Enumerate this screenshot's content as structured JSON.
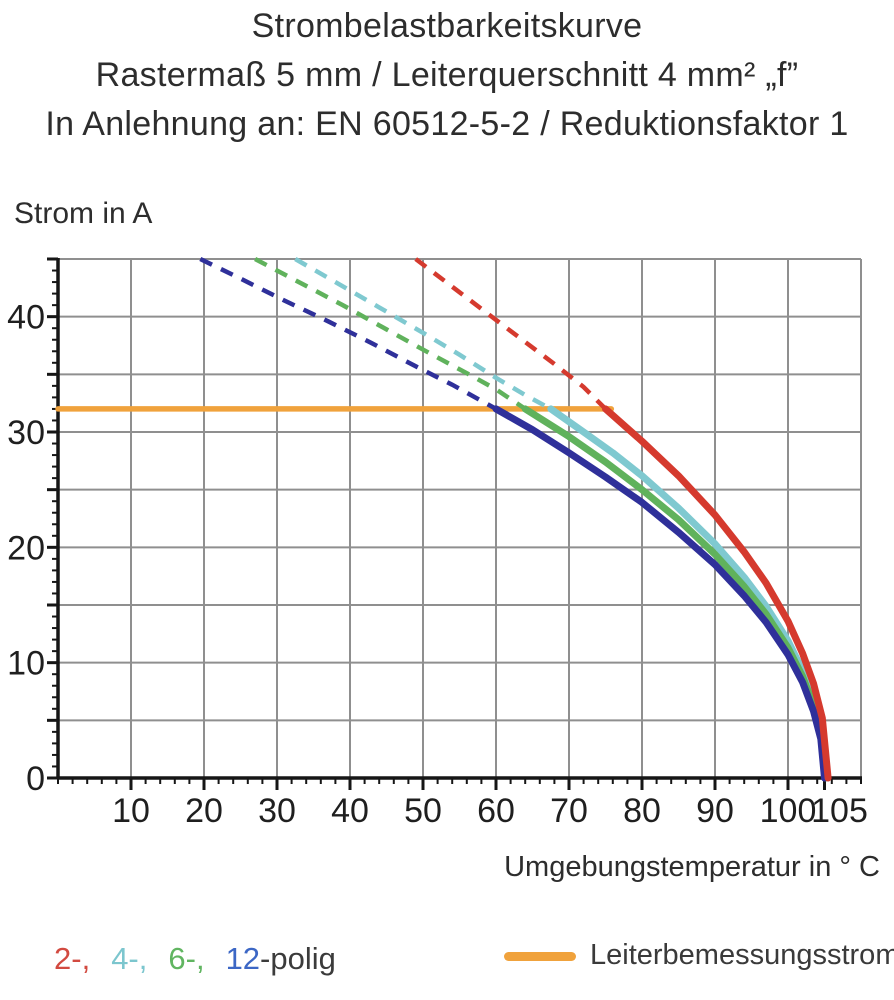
{
  "title": {
    "lines": [
      "Strombelastbarkeitskurve",
      "Rastermaß 5 mm / Leiterquerschnitt 4 mm² „f”",
      "In Anlehnung an: EN 60512-5-2 / Reduktionsfaktor 1"
    ]
  },
  "chart_data": {
    "type": "line",
    "title": "Strombelastbarkeitskurve",
    "x_axis": {
      "label": "Umgebungstemperatur in ° C",
      "range": [
        0,
        110
      ],
      "major_ticks": [
        10,
        20,
        30,
        40,
        50,
        60,
        70,
        80,
        90,
        100,
        105
      ],
      "grid_step": 10,
      "minor_step": 2
    },
    "y_axis": {
      "label": "Strom in A",
      "range": [
        0,
        45
      ],
      "labeled_ticks": [
        0,
        10,
        20,
        30,
        40
      ],
      "grid_step": 5,
      "minor_step": 1
    },
    "grid_on": true,
    "grid_color": "#8f8f8f",
    "axis_color": "#161616",
    "reference_line": {
      "name": "Leiterbemessungsstrom",
      "current_a": 32,
      "t_start": 0,
      "t_end": 75.8,
      "color": "#F0A23C"
    },
    "series": [
      {
        "name": "2-polig",
        "poles": 2,
        "color": "#D53A2E",
        "z": 4,
        "rated_current_a": 32,
        "derating_start_c": 75,
        "zero_current_c": 105.5,
        "dashed_points": [
          [
            49,
            45
          ],
          [
            54,
            42.6
          ],
          [
            59,
            40.2
          ],
          [
            64,
            37.8
          ],
          [
            68,
            35.9
          ],
          [
            72,
            33.9
          ],
          [
            75,
            32
          ]
        ],
        "solid_points": [
          [
            75,
            32
          ],
          [
            80,
            29.2
          ],
          [
            85,
            26.2
          ],
          [
            90,
            22.8
          ],
          [
            94,
            19.6
          ],
          [
            97,
            16.9
          ],
          [
            100,
            13.6
          ],
          [
            102,
            10.8
          ],
          [
            103.5,
            8.2
          ],
          [
            104.7,
            5.2
          ],
          [
            105.5,
            0
          ]
        ]
      },
      {
        "name": "4-polig",
        "poles": 4,
        "color": "#7FC9D0",
        "z": 1,
        "rated_current_a": 32,
        "derating_start_c": 67.5,
        "zero_current_c": 105.2,
        "dashed_points": [
          [
            32.5,
            45
          ],
          [
            38,
            43
          ],
          [
            44,
            40.8
          ],
          [
            50,
            38.6
          ],
          [
            55,
            36.7
          ],
          [
            60,
            34.7
          ],
          [
            64,
            33.2
          ],
          [
            67.5,
            32
          ]
        ],
        "solid_points": [
          [
            67.5,
            32
          ],
          [
            72,
            30
          ],
          [
            76,
            28.2
          ],
          [
            80,
            26.2
          ],
          [
            85,
            23.4
          ],
          [
            90,
            20.3
          ],
          [
            94,
            17.4
          ],
          [
            97,
            14.9
          ],
          [
            100,
            11.9
          ],
          [
            102,
            9.3
          ],
          [
            103.5,
            6.8
          ],
          [
            104.7,
            3.7
          ],
          [
            105.2,
            0
          ]
        ]
      },
      {
        "name": "6-polig",
        "poles": 6,
        "color": "#60B25C",
        "z": 2,
        "rated_current_a": 32,
        "derating_start_c": 64,
        "zero_current_c": 105.1,
        "dashed_points": [
          [
            27,
            45
          ],
          [
            33,
            43
          ],
          [
            39,
            41
          ],
          [
            45,
            38.9
          ],
          [
            51,
            36.8
          ],
          [
            56,
            35.1
          ],
          [
            60,
            33.7
          ],
          [
            64,
            32
          ]
        ],
        "solid_points": [
          [
            64,
            32
          ],
          [
            70,
            29.6
          ],
          [
            75,
            27.4
          ],
          [
            80,
            25
          ],
          [
            85,
            22.4
          ],
          [
            90,
            19.4
          ],
          [
            94,
            16.6
          ],
          [
            97,
            14.2
          ],
          [
            100,
            11.3
          ],
          [
            102,
            8.8
          ],
          [
            103.5,
            6.3
          ],
          [
            104.6,
            3.5
          ],
          [
            105.1,
            0
          ]
        ]
      },
      {
        "name": "12-polig",
        "poles": 12,
        "color": "#2F309A",
        "z": 3,
        "rated_current_a": 32,
        "derating_start_c": 60,
        "zero_current_c": 105,
        "dashed_points": [
          [
            19.5,
            45
          ],
          [
            25,
            43.3
          ],
          [
            31,
            41.4
          ],
          [
            37,
            39.6
          ],
          [
            43,
            37.7
          ],
          [
            49,
            35.7
          ],
          [
            54,
            34.1
          ],
          [
            60,
            32
          ]
        ],
        "solid_points": [
          [
            60,
            32
          ],
          [
            65,
            30.2
          ],
          [
            70,
            28.2
          ],
          [
            75,
            26.1
          ],
          [
            80,
            23.9
          ],
          [
            85,
            21.3
          ],
          [
            90,
            18.5
          ],
          [
            94,
            15.8
          ],
          [
            97,
            13.5
          ],
          [
            100,
            10.7
          ],
          [
            102,
            8.3
          ],
          [
            103.5,
            5.8
          ],
          [
            104.5,
            3.4
          ],
          [
            105,
            0
          ]
        ]
      }
    ]
  },
  "legend": {
    "parts": [
      {
        "text": "2-,",
        "color": "#D24A40"
      },
      {
        "text": "4-,",
        "color": "#7CC6CE"
      },
      {
        "text": "6-,",
        "color": "#61B561"
      },
      {
        "text": "12",
        "color": "#3C67C5"
      },
      {
        "text": "-polig",
        "color": "#3B3B3B"
      }
    ],
    "reference_label": "Leiterbemessungsstrom"
  }
}
